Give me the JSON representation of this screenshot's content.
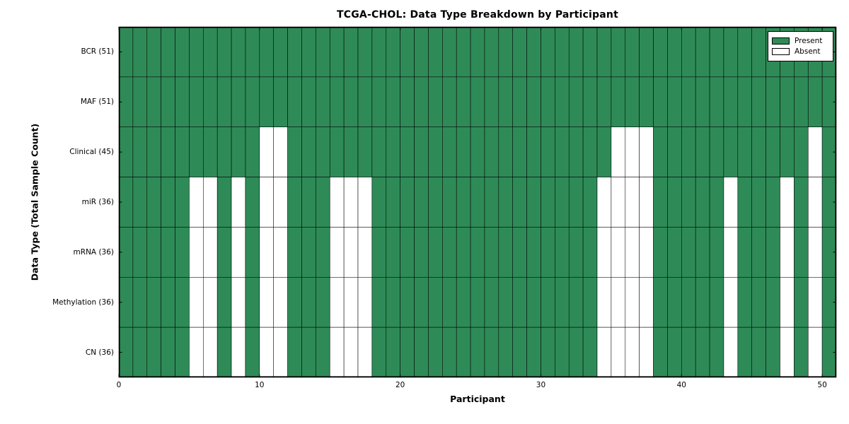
{
  "chart_data": {
    "type": "heatmap",
    "title": "TCGA-CHOL: Data Type Breakdown by Participant",
    "xlabel": "Participant",
    "ylabel": "Data Type (Total Sample Count)",
    "n_participants": 51,
    "x_range": [
      0,
      51
    ],
    "xticks": [
      0,
      10,
      20,
      30,
      40,
      50
    ],
    "grid": "cell-borders",
    "rows": [
      {
        "label": "BCR (51)",
        "data_type": "BCR",
        "total_samples": 51,
        "absent_participants": []
      },
      {
        "label": "MAF (51)",
        "data_type": "MAF",
        "total_samples": 51,
        "absent_participants": []
      },
      {
        "label": "Clinical (45)",
        "data_type": "Clinical",
        "total_samples": 45,
        "absent_participants": [
          10,
          11,
          35,
          36,
          37,
          49
        ]
      },
      {
        "label": "miR (36)",
        "data_type": "miR",
        "total_samples": 36,
        "absent_participants": [
          5,
          6,
          8,
          10,
          11,
          15,
          16,
          17,
          34,
          35,
          36,
          37,
          43,
          47,
          49
        ]
      },
      {
        "label": "mRNA (36)",
        "data_type": "mRNA",
        "total_samples": 36,
        "absent_participants": [
          5,
          6,
          8,
          10,
          11,
          15,
          16,
          17,
          34,
          35,
          36,
          37,
          43,
          47,
          49
        ]
      },
      {
        "label": "Methylation (36)",
        "data_type": "Methylation",
        "total_samples": 36,
        "absent_participants": [
          5,
          6,
          8,
          10,
          11,
          15,
          16,
          17,
          34,
          35,
          36,
          37,
          43,
          47,
          49
        ]
      },
      {
        "label": "CN (36)",
        "data_type": "CN",
        "total_samples": 36,
        "absent_participants": [
          5,
          6,
          8,
          10,
          11,
          15,
          16,
          17,
          34,
          35,
          36,
          37,
          43,
          47,
          49
        ]
      }
    ],
    "legend": [
      {
        "label": "Present",
        "color": "#2E8B57"
      },
      {
        "label": "Absent",
        "color": "#FFFFFF"
      }
    ],
    "legend_position": "upper-right",
    "colors": {
      "present": "#2E8B57",
      "absent": "#FFFFFF",
      "edge": "#000000",
      "background": "#FFFFFF"
    }
  }
}
